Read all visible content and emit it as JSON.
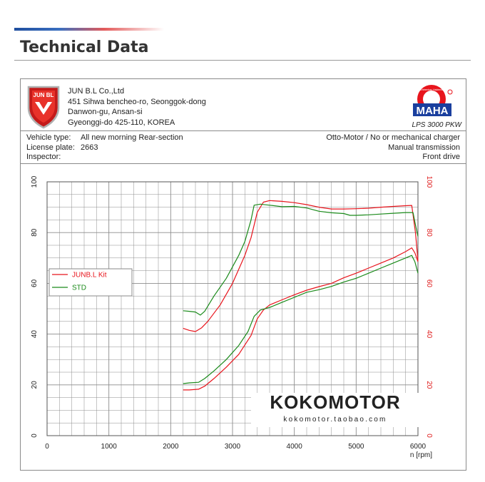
{
  "page": {
    "title": "Technical Data"
  },
  "header": {
    "brand_logo_text": "JUN BL",
    "company_lines": [
      "JUN B.L Co.,Ltd",
      "451 Sihwa bencheo-ro, Seonggok-dong",
      "Danwon-gu, Ansan-si",
      "Gyeonggi-do 425-110, KOREA"
    ],
    "maha_logo_text": "MAHA",
    "maha_ring_text": "Maschinenbau Haldenwang",
    "maha_caption": "LPS 3000 PKW"
  },
  "vehicle": {
    "type_label": "Vehicle type:",
    "type_value": "All new morning Rear-section",
    "plate_label": "License plate:",
    "plate_value": "2663",
    "inspector_label": "Inspector:",
    "inspector_value": "",
    "engine": "Otto-Motor / No or mechanical charger",
    "transmission": "Manual transmission",
    "drive": "Front drive"
  },
  "watermark": {
    "brand": "KOKOMOTOR",
    "url": "kokomotor.taobao.com"
  },
  "colors": {
    "junbl": "#e8141c",
    "std": "#1a8a1a",
    "grid": "#8c8c8c",
    "right_axis": "#e02020"
  },
  "chart_data": {
    "type": "line",
    "x_unit_label": "n [rpm]",
    "xlim": [
      0,
      6000
    ],
    "ylim": [
      0,
      100
    ],
    "x_ticks": [
      0,
      1000,
      2000,
      3000,
      4000,
      5000,
      6000
    ],
    "y_ticks": [
      0,
      20,
      40,
      60,
      80,
      100
    ],
    "grid": true,
    "legend_position": "top-left",
    "series": [
      {
        "name": "JUNB.L Kit",
        "color": "#e8141c",
        "points": [
          [
            2200,
            42.3
          ],
          [
            2300,
            41.5
          ],
          [
            2400,
            41.0
          ],
          [
            2500,
            42.5
          ],
          [
            2600,
            45.0
          ],
          [
            2800,
            51.5
          ],
          [
            3000,
            60.0
          ],
          [
            3200,
            71.0
          ],
          [
            3300,
            78.0
          ],
          [
            3400,
            88.0
          ],
          [
            3500,
            92.0
          ],
          [
            3600,
            92.6
          ],
          [
            3800,
            92.3
          ],
          [
            4000,
            91.8
          ],
          [
            4200,
            91.0
          ],
          [
            4400,
            90.0
          ],
          [
            4600,
            89.3
          ],
          [
            4800,
            89.3
          ],
          [
            5000,
            89.4
          ],
          [
            5200,
            89.6
          ],
          [
            5400,
            90.0
          ],
          [
            5600,
            90.3
          ],
          [
            5800,
            90.6
          ],
          [
            5900,
            90.7
          ],
          [
            5960,
            80.0
          ],
          [
            6000,
            69.0
          ]
        ]
      },
      {
        "name": "STD",
        "color": "#1a8a1a",
        "points": [
          [
            2200,
            49.2
          ],
          [
            2300,
            49.0
          ],
          [
            2400,
            48.7
          ],
          [
            2480,
            47.5
          ],
          [
            2550,
            49.0
          ],
          [
            2700,
            55.0
          ],
          [
            2900,
            62.0
          ],
          [
            3100,
            71.0
          ],
          [
            3200,
            76.5
          ],
          [
            3300,
            85.0
          ],
          [
            3350,
            90.8
          ],
          [
            3450,
            91.2
          ],
          [
            3600,
            90.8
          ],
          [
            3800,
            90.2
          ],
          [
            4000,
            90.3
          ],
          [
            4200,
            89.7
          ],
          [
            4400,
            88.4
          ],
          [
            4600,
            87.8
          ],
          [
            4800,
            87.5
          ],
          [
            4900,
            86.8
          ],
          [
            5000,
            86.8
          ],
          [
            5200,
            87.0
          ],
          [
            5400,
            87.3
          ],
          [
            5600,
            87.6
          ],
          [
            5800,
            87.9
          ],
          [
            5920,
            87.9
          ],
          [
            5960,
            83.0
          ],
          [
            6000,
            78.5
          ]
        ]
      },
      {
        "name": "JUNB.L Kit",
        "color": "#e8141c",
        "points": [
          [
            2200,
            18.0
          ],
          [
            2300,
            18.0
          ],
          [
            2450,
            18.3
          ],
          [
            2550,
            19.5
          ],
          [
            2700,
            22.5
          ],
          [
            2900,
            27.0
          ],
          [
            3100,
            32.0
          ],
          [
            3300,
            39.5
          ],
          [
            3400,
            46.0
          ],
          [
            3500,
            49.5
          ],
          [
            3600,
            51.5
          ],
          [
            3800,
            53.5
          ],
          [
            4000,
            55.5
          ],
          [
            4200,
            57.3
          ],
          [
            4400,
            58.7
          ],
          [
            4600,
            60.0
          ],
          [
            4800,
            62.2
          ],
          [
            5000,
            64.0
          ],
          [
            5200,
            66.0
          ],
          [
            5400,
            68.0
          ],
          [
            5600,
            70.0
          ],
          [
            5800,
            72.5
          ],
          [
            5900,
            74.0
          ],
          [
            5950,
            72.0
          ],
          [
            6000,
            68.5
          ]
        ]
      },
      {
        "name": "STD",
        "color": "#1a8a1a",
        "points": [
          [
            2200,
            20.5
          ],
          [
            2300,
            20.8
          ],
          [
            2450,
            21.0
          ],
          [
            2550,
            22.5
          ],
          [
            2700,
            25.5
          ],
          [
            2900,
            30.0
          ],
          [
            3100,
            35.5
          ],
          [
            3250,
            41.0
          ],
          [
            3350,
            47.0
          ],
          [
            3450,
            49.5
          ],
          [
            3600,
            50.5
          ],
          [
            3800,
            52.5
          ],
          [
            4000,
            54.5
          ],
          [
            4200,
            56.5
          ],
          [
            4400,
            57.5
          ],
          [
            4600,
            58.8
          ],
          [
            4800,
            60.5
          ],
          [
            5000,
            62.0
          ],
          [
            5200,
            64.0
          ],
          [
            5400,
            66.0
          ],
          [
            5600,
            68.0
          ],
          [
            5800,
            70.0
          ],
          [
            5900,
            71.0
          ],
          [
            5950,
            68.5
          ],
          [
            6000,
            64.0
          ]
        ]
      }
    ],
    "legend": [
      {
        "label": "JUNB.L Kit",
        "color": "#e8141c"
      },
      {
        "label": "STD",
        "color": "#1a8a1a"
      }
    ]
  }
}
